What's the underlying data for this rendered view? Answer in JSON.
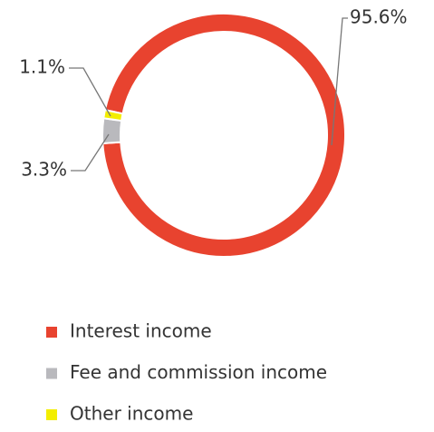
{
  "chart_data": {
    "type": "donut",
    "categories": [
      "Interest income",
      "Fee and commission income",
      "Other income"
    ],
    "values": [
      95.6,
      3.3,
      1.1
    ],
    "value_labels": [
      "95.6%",
      "3.3%",
      "1.1%"
    ],
    "colors": [
      "#e8432f",
      "#b9b9bd",
      "#f3ee00"
    ],
    "legend": "bottom"
  }
}
